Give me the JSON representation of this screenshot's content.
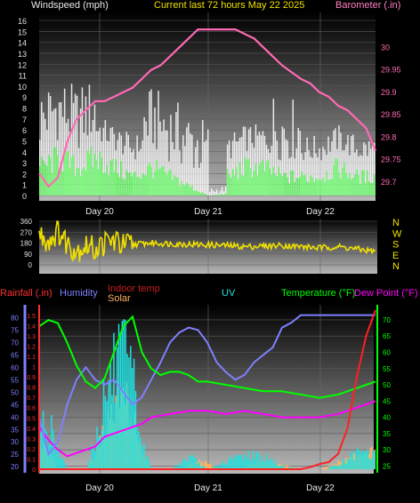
{
  "header": {
    "left_label": "Windspeed (mph)",
    "center_label": "Current last 72 hours May 22 2025",
    "right_label": "Barometer (.in)"
  },
  "colors": {
    "header_left": "#e8e8e8",
    "header_center": "#f0e000",
    "header_right": "#ff80c0",
    "gust": "#ffffff",
    "wind": "#70ff70",
    "barometer": "#ff69b4",
    "direction": "#f0e000",
    "rain_axis": "#ff3030",
    "humidity": "#7f7fff",
    "indoor_temp": "#c81e1e",
    "solar": "#ffb464",
    "uv": "#20e0e0",
    "temperature": "#00ff00",
    "dewpoint": "#ff00ff"
  },
  "chart_data": [
    {
      "type": "area",
      "name": "wind",
      "x_labels": [
        "Day 20",
        "Day 21",
        "Day 22"
      ],
      "y_left_ticks": [
        0,
        1,
        2,
        3,
        4,
        5,
        6,
        7,
        8,
        9,
        10,
        11,
        12,
        13,
        14,
        15,
        16
      ],
      "ylim_left": [
        0,
        16
      ],
      "y_right_ticks": [
        "29.7",
        "29.75",
        "29.8",
        "29.85",
        "29.9",
        "29.95",
        "30"
      ],
      "ylim_right": [
        29.67,
        30.06
      ],
      "series": [
        {
          "name": "Windspeed (mph)",
          "x_hours": [
            0,
            4,
            8,
            12,
            16,
            20,
            24,
            28,
            32,
            36,
            40,
            44,
            48,
            52,
            56,
            60,
            64,
            68,
            72
          ],
          "values": [
            3,
            4,
            3,
            4,
            3,
            2,
            3,
            2,
            1,
            0,
            2,
            3,
            3,
            2,
            2,
            2,
            3,
            2,
            2
          ]
        },
        {
          "name": "Barometer (.in)",
          "x_hours": [
            0,
            2,
            4,
            6,
            8,
            10,
            12,
            14,
            16,
            18,
            20,
            22,
            24,
            26,
            28,
            30,
            32,
            34,
            36,
            40,
            42,
            44,
            46,
            48,
            52,
            56,
            58,
            60,
            62,
            64,
            66,
            68,
            70,
            72
          ],
          "values": [
            29.72,
            29.69,
            29.71,
            29.79,
            29.84,
            29.86,
            29.88,
            29.88,
            29.89,
            29.9,
            29.91,
            29.93,
            29.95,
            29.96,
            29.98,
            30.0,
            30.02,
            30.04,
            30.04,
            30.04,
            30.04,
            30.03,
            30.02,
            30.0,
            29.96,
            29.93,
            29.92,
            29.9,
            29.89,
            29.87,
            29.86,
            29.84,
            29.82,
            29.77
          ]
        }
      ]
    },
    {
      "type": "line",
      "name": "wind-direction",
      "x_labels": [
        "Day 20",
        "Day 21",
        "Day 22"
      ],
      "y_left_ticks": [
        0,
        90,
        180,
        270,
        360
      ],
      "ylim_left": [
        0,
        360
      ],
      "y_right_ticks": [
        "N",
        "W",
        "S",
        "E",
        "N"
      ],
      "series": [
        {
          "name": "Wind direction",
          "x_hours": [
            0,
            2,
            4,
            6,
            8,
            10,
            12,
            14,
            16,
            18,
            20,
            24,
            28,
            32,
            36,
            40,
            44,
            48,
            52,
            56,
            60,
            64,
            68,
            72
          ],
          "values": [
            250,
            200,
            280,
            180,
            120,
            160,
            130,
            180,
            200,
            160,
            170,
            180,
            175,
            170,
            165,
            160,
            150,
            155,
            160,
            150,
            140,
            150,
            130,
            110
          ]
        }
      ]
    },
    {
      "type": "line",
      "name": "climate",
      "x_labels": [
        "Day 20",
        "Day 21",
        "Day 22"
      ],
      "legend": [
        "Rainfall (.in)",
        "Humidity",
        "Indoor temp",
        "Solar",
        "UV",
        "Temperature (°F)",
        "Dew Point (°F)"
      ],
      "y_rain_ticks": [
        "0",
        "0.1",
        "0.2",
        "0.3",
        "0.4",
        "0.5",
        "0.6",
        "0.7",
        "0.8",
        "0.9",
        "1",
        "1.1",
        "1.2",
        "1.3",
        "1.4",
        "1.5"
      ],
      "ylim_rain": [
        0,
        1.55
      ],
      "y_humidity_ticks": [
        20,
        25,
        30,
        35,
        40,
        45,
        50,
        55,
        60,
        65,
        70,
        75,
        80
      ],
      "ylim_humidity": [
        19,
        83
      ],
      "y_temp_ticks": [
        25,
        30,
        35,
        40,
        45,
        50,
        55,
        60,
        65,
        70
      ],
      "ylim_temp": [
        24,
        73
      ],
      "series": [
        {
          "name": "Temperature (°F)",
          "x_hours": [
            0,
            2,
            4,
            6,
            8,
            10,
            12,
            14,
            16,
            18,
            20,
            22,
            24,
            26,
            28,
            30,
            32,
            34,
            36,
            40,
            44,
            48,
            52,
            56,
            60,
            64,
            68,
            72
          ],
          "values": [
            68,
            70,
            69,
            63,
            56,
            51,
            49,
            52,
            60,
            68,
            71,
            60,
            55,
            53,
            54,
            54,
            53,
            51,
            51,
            50,
            49,
            48,
            48,
            47,
            46,
            47,
            49,
            51
          ]
        },
        {
          "name": "Dew Point (°F)",
          "x_hours": [
            0,
            2,
            4,
            6,
            8,
            10,
            12,
            14,
            16,
            18,
            20,
            22,
            24,
            28,
            32,
            36,
            40,
            44,
            48,
            52,
            56,
            60,
            64,
            68,
            72
          ],
          "values": [
            37,
            33,
            30,
            28,
            29,
            30,
            31,
            34,
            35,
            36,
            37,
            38,
            40,
            41,
            42,
            42,
            41,
            42,
            41,
            40,
            40,
            40,
            41,
            43,
            45
          ]
        },
        {
          "name": "Humidity",
          "x_hours": [
            0,
            2,
            4,
            6,
            8,
            10,
            12,
            14,
            16,
            18,
            20,
            22,
            24,
            26,
            28,
            30,
            32,
            34,
            36,
            38,
            40,
            42,
            44,
            46,
            48,
            50,
            52,
            54,
            56,
            58,
            60,
            62,
            64,
            66,
            68,
            70,
            72
          ],
          "values": [
            40,
            25,
            30,
            45,
            55,
            60,
            55,
            53,
            55,
            50,
            45,
            48,
            55,
            62,
            70,
            74,
            76,
            75,
            70,
            62,
            58,
            55,
            57,
            62,
            65,
            68,
            76,
            78,
            81,
            81,
            81,
            81,
            81,
            81,
            81,
            81,
            81
          ]
        },
        {
          "name": "Rainfall (.in)",
          "x_hours": [
            0,
            10,
            20,
            30,
            40,
            50,
            56,
            58,
            60,
            62,
            64,
            66,
            68,
            70,
            72
          ],
          "values": [
            0,
            0,
            0,
            0,
            0,
            0,
            0,
            0.02,
            0.05,
            0.07,
            0.15,
            0.4,
            0.9,
            1.3,
            1.55
          ]
        },
        {
          "name": "Solar",
          "x_hours": [
            0,
            2,
            4,
            6,
            8,
            10,
            12,
            14,
            16,
            18,
            20,
            22,
            24,
            26,
            28,
            30,
            32,
            34,
            36,
            40,
            44,
            48,
            52,
            56,
            60,
            64,
            68,
            72
          ],
          "values": [
            0.2,
            0.1,
            0,
            0,
            0,
            0,
            0.1,
            0.3,
            0.45,
            0.5,
            0.35,
            0.1,
            0,
            0,
            0,
            0,
            0.04,
            0.05,
            0.04,
            0,
            0.02,
            0.05,
            0.03,
            0,
            0,
            0.05,
            0.1,
            0.15
          ]
        },
        {
          "name": "UV",
          "x_hours": [
            0,
            2,
            4,
            6,
            8,
            10,
            12,
            14,
            16,
            18,
            20,
            22,
            24,
            28,
            32,
            36,
            40,
            44,
            48,
            52,
            56,
            60,
            64,
            68,
            72
          ],
          "values": [
            0.3,
            0.3,
            0.1,
            0,
            0,
            0,
            0.2,
            0.5,
            0.65,
            0.7,
            0.55,
            0.15,
            0,
            0,
            0.08,
            0,
            0.05,
            0.1,
            0.08,
            0.02,
            0,
            0,
            0.03,
            0.1,
            0.1
          ]
        }
      ]
    }
  ]
}
